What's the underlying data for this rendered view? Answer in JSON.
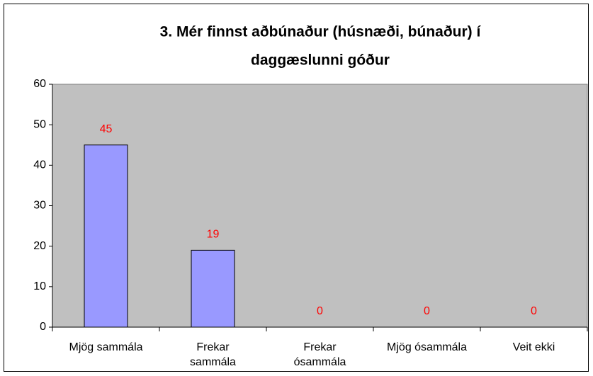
{
  "chart_data": {
    "type": "bar",
    "title": [
      "3. Mér finnst aðbúnaður (húsnæði, búnaður) í",
      "daggæslunni góður"
    ],
    "categories": [
      "Mjög sammála",
      "Frekar sammála",
      "Frekar ósammála",
      "Mjög ósammála",
      "Veit ekki"
    ],
    "values": [
      45,
      19,
      0,
      0,
      0
    ],
    "color": "#9999ff",
    "value_label_color": "#ff0000",
    "plot_background": "#c0c0c0",
    "ylim": [
      0,
      60
    ],
    "yticks": [
      0,
      10,
      20,
      30,
      40,
      50,
      60
    ],
    "grid": false
  }
}
